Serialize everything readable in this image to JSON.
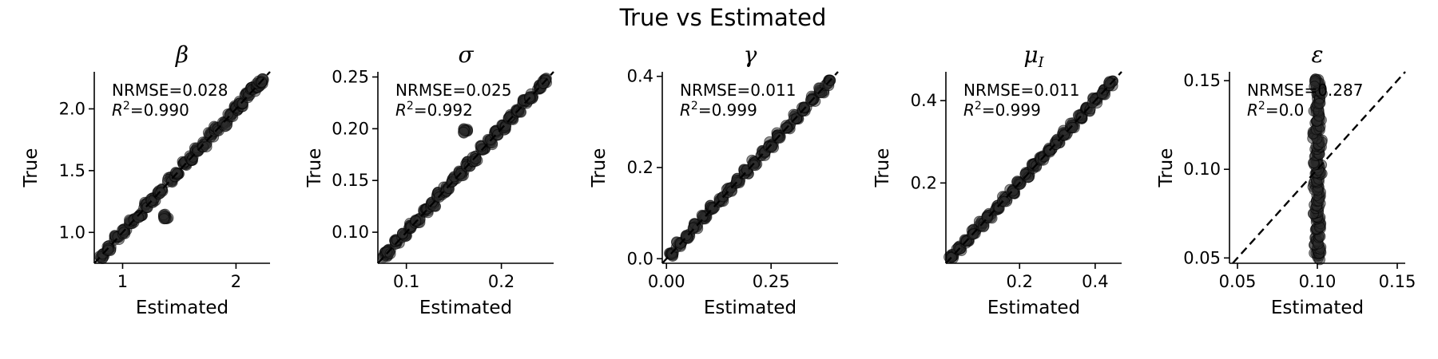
{
  "figure": {
    "title": "True vs Estimated"
  },
  "chart_data": [
    {
      "type": "scatter",
      "title": "β",
      "xlabel": "Estimated",
      "ylabel": "True",
      "xlim": [
        0.75,
        2.3
      ],
      "ylim": [
        0.75,
        2.3
      ],
      "xticks": [
        1,
        2
      ],
      "xtick_labels": [
        "1",
        "2"
      ],
      "yticks": [
        1.0,
        1.5,
        2.0
      ],
      "ytick_labels": [
        "1.0",
        "1.5",
        "2.0"
      ],
      "nrmse_label": "NRMSE=0.028",
      "r2_label": "=0.990",
      "diagonal": true,
      "points": [
        [
          0.82,
          0.81
        ],
        [
          0.88,
          0.87
        ],
        [
          0.95,
          0.96
        ],
        [
          1.02,
          1.01
        ],
        [
          1.08,
          1.09
        ],
        [
          1.15,
          1.14
        ],
        [
          1.2,
          1.22
        ],
        [
          1.27,
          1.26
        ],
        [
          1.33,
          1.33
        ],
        [
          1.38,
          1.13
        ],
        [
          1.42,
          1.43
        ],
        [
          1.48,
          1.47
        ],
        [
          1.55,
          1.56
        ],
        [
          1.6,
          1.6
        ],
        [
          1.66,
          1.67
        ],
        [
          1.72,
          1.71
        ],
        [
          1.78,
          1.79
        ],
        [
          1.83,
          1.84
        ],
        [
          1.9,
          1.88
        ],
        [
          1.95,
          1.96
        ],
        [
          2.0,
          2.01
        ],
        [
          2.05,
          2.04
        ],
        [
          2.1,
          2.11
        ],
        [
          2.15,
          2.16
        ],
        [
          2.2,
          2.19
        ],
        [
          2.22,
          2.22
        ]
      ]
    },
    {
      "type": "scatter",
      "title": "σ",
      "xlabel": "Estimated",
      "ylabel": "True",
      "xlim": [
        0.07,
        0.255
      ],
      "ylim": [
        0.07,
        0.255
      ],
      "xticks": [
        0.1,
        0.2
      ],
      "xtick_labels": [
        "0.1",
        "0.2"
      ],
      "yticks": [
        0.1,
        0.15,
        0.2,
        0.25
      ],
      "ytick_labels": [
        "0.10",
        "0.15",
        "0.20",
        "0.25"
      ],
      "nrmse_label": "NRMSE=0.025",
      "r2_label": "=0.992",
      "diagonal": true,
      "points": [
        [
          0.078,
          0.078
        ],
        [
          0.082,
          0.081
        ],
        [
          0.09,
          0.091
        ],
        [
          0.098,
          0.097
        ],
        [
          0.105,
          0.106
        ],
        [
          0.112,
          0.111
        ],
        [
          0.12,
          0.121
        ],
        [
          0.128,
          0.127
        ],
        [
          0.135,
          0.136
        ],
        [
          0.142,
          0.141
        ],
        [
          0.15,
          0.151
        ],
        [
          0.158,
          0.157
        ],
        [
          0.162,
          0.198
        ],
        [
          0.165,
          0.166
        ],
        [
          0.172,
          0.171
        ],
        [
          0.18,
          0.181
        ],
        [
          0.188,
          0.187
        ],
        [
          0.195,
          0.196
        ],
        [
          0.202,
          0.201
        ],
        [
          0.21,
          0.211
        ],
        [
          0.218,
          0.217
        ],
        [
          0.225,
          0.226
        ],
        [
          0.232,
          0.231
        ],
        [
          0.24,
          0.241
        ],
        [
          0.245,
          0.246
        ]
      ]
    },
    {
      "type": "scatter",
      "title": "γ",
      "xlabel": "Estimated",
      "ylabel": "True",
      "xlim": [
        -0.01,
        0.41
      ],
      "ylim": [
        -0.01,
        0.41
      ],
      "xticks": [
        0.0,
        0.25
      ],
      "xtick_labels": [
        "0.00",
        "0.25"
      ],
      "yticks": [
        0.0,
        0.2,
        0.4
      ],
      "ytick_labels": [
        "0.0",
        "0.2",
        "0.4"
      ],
      "nrmse_label": "NRMSE=0.011",
      "r2_label": "=0.999",
      "diagonal": true,
      "points": [
        [
          0.01,
          0.01
        ],
        [
          0.03,
          0.031
        ],
        [
          0.05,
          0.05
        ],
        [
          0.07,
          0.071
        ],
        [
          0.09,
          0.09
        ],
        [
          0.11,
          0.111
        ],
        [
          0.13,
          0.13
        ],
        [
          0.15,
          0.151
        ],
        [
          0.17,
          0.17
        ],
        [
          0.19,
          0.191
        ],
        [
          0.21,
          0.21
        ],
        [
          0.23,
          0.231
        ],
        [
          0.25,
          0.25
        ],
        [
          0.27,
          0.271
        ],
        [
          0.29,
          0.29
        ],
        [
          0.31,
          0.311
        ],
        [
          0.33,
          0.33
        ],
        [
          0.35,
          0.351
        ],
        [
          0.37,
          0.37
        ],
        [
          0.385,
          0.386
        ]
      ]
    },
    {
      "type": "scatter",
      "title": "μ",
      "title_sub": "I",
      "xlabel": "Estimated",
      "ylabel": "True",
      "xlim": [
        0.005,
        0.47
      ],
      "ylim": [
        0.005,
        0.47
      ],
      "xticks": [
        0.2,
        0.4
      ],
      "xtick_labels": [
        "0.2",
        "0.4"
      ],
      "yticks": [
        0.2,
        0.4
      ],
      "ytick_labels": [
        "0.2",
        "0.4"
      ],
      "nrmse_label": "NRMSE=0.011",
      "r2_label": "=0.999",
      "diagonal": true,
      "points": [
        [
          0.02,
          0.02
        ],
        [
          0.04,
          0.041
        ],
        [
          0.06,
          0.06
        ],
        [
          0.08,
          0.081
        ],
        [
          0.1,
          0.1
        ],
        [
          0.12,
          0.121
        ],
        [
          0.14,
          0.14
        ],
        [
          0.16,
          0.161
        ],
        [
          0.18,
          0.18
        ],
        [
          0.2,
          0.201
        ],
        [
          0.22,
          0.22
        ],
        [
          0.24,
          0.241
        ],
        [
          0.26,
          0.26
        ],
        [
          0.28,
          0.281
        ],
        [
          0.3,
          0.3
        ],
        [
          0.32,
          0.321
        ],
        [
          0.34,
          0.34
        ],
        [
          0.36,
          0.361
        ],
        [
          0.38,
          0.38
        ],
        [
          0.4,
          0.401
        ],
        [
          0.42,
          0.42
        ],
        [
          0.44,
          0.441
        ]
      ]
    },
    {
      "type": "scatter",
      "title": "ε",
      "xlabel": "Estimated",
      "ylabel": "True",
      "xlim": [
        0.045,
        0.155
      ],
      "ylim": [
        0.047,
        0.155
      ],
      "xticks": [
        0.05,
        0.1,
        0.15
      ],
      "xtick_labels": [
        "0.05",
        "0.10",
        "0.15"
      ],
      "yticks": [
        0.05,
        0.1,
        0.15
      ],
      "ytick_labels": [
        "0.05",
        "0.10",
        "0.15"
      ],
      "nrmse_label": "NRMSE=0.287",
      "r2_label": "=0.0",
      "diagonal": true,
      "points": [
        [
          0.1,
          0.051
        ],
        [
          0.101,
          0.055
        ],
        [
          0.099,
          0.06
        ],
        [
          0.1,
          0.065
        ],
        [
          0.101,
          0.07
        ],
        [
          0.099,
          0.075
        ],
        [
          0.1,
          0.08
        ],
        [
          0.101,
          0.085
        ],
        [
          0.099,
          0.09
        ],
        [
          0.1,
          0.095
        ],
        [
          0.101,
          0.1
        ],
        [
          0.099,
          0.105
        ],
        [
          0.1,
          0.11
        ],
        [
          0.101,
          0.115
        ],
        [
          0.099,
          0.12
        ],
        [
          0.1,
          0.125
        ],
        [
          0.101,
          0.13
        ],
        [
          0.099,
          0.135
        ],
        [
          0.1,
          0.14
        ],
        [
          0.101,
          0.145
        ],
        [
          0.1,
          0.149
        ]
      ]
    }
  ]
}
